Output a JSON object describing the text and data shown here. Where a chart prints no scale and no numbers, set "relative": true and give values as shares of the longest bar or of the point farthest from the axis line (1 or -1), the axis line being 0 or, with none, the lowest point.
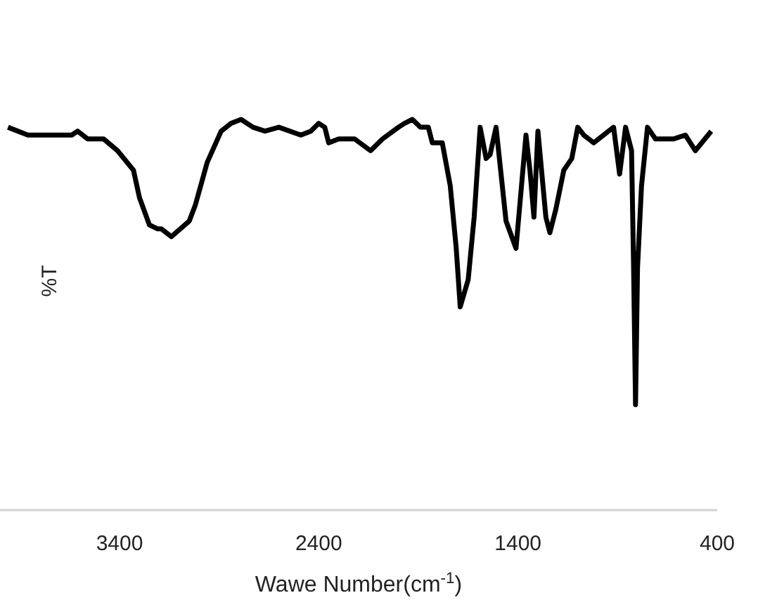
{
  "chart_data": {
    "type": "line",
    "xlabel": "Wawe Number(cm$^{-1}$)",
    "ylabel": "%T",
    "relative": true,
    "marker": "none",
    "xlim": [
      4000,
      400
    ],
    "xticks": [
      3400,
      2400,
      1400,
      400
    ],
    "x": [
      3960,
      3860,
      3810,
      3750,
      3700,
      3640,
      3610,
      3560,
      3480,
      3410,
      3330,
      3300,
      3250,
      3210,
      3190,
      3140,
      3050,
      3020,
      2960,
      2890,
      2840,
      2790,
      2730,
      2670,
      2600,
      2490,
      2440,
      2400,
      2370,
      2350,
      2300,
      2220,
      2140,
      2080,
      2000,
      1970,
      1930,
      1890,
      1850,
      1830,
      1780,
      1740,
      1710,
      1690,
      1650,
      1620,
      1590,
      1560,
      1540,
      1510,
      1460,
      1410,
      1360,
      1340,
      1320,
      1300,
      1260,
      1240,
      1210,
      1170,
      1130,
      1100,
      1070,
      1020,
      920,
      890,
      860,
      830,
      820,
      810,
      800,
      780,
      750,
      710,
      670,
      640,
      620,
      560,
      510,
      430
    ],
    "series": [
      {
        "color": "#000000",
        "values": [
          0.98,
          0.96,
          0.96,
          0.96,
          0.96,
          0.96,
          0.97,
          0.95,
          0.95,
          0.92,
          0.87,
          0.8,
          0.73,
          0.72,
          0.72,
          0.7,
          0.74,
          0.78,
          0.89,
          0.97,
          0.99,
          1.0,
          0.98,
          0.97,
          0.98,
          0.96,
          0.97,
          0.99,
          0.98,
          0.94,
          0.95,
          0.95,
          0.92,
          0.95,
          0.98,
          0.99,
          1.0,
          0.98,
          0.98,
          0.94,
          0.94,
          0.83,
          0.67,
          0.52,
          0.59,
          0.75,
          0.98,
          0.9,
          0.91,
          0.98,
          0.74,
          0.67,
          0.96,
          0.87,
          0.75,
          0.97,
          0.75,
          0.71,
          0.77,
          0.87,
          0.9,
          0.98,
          0.96,
          0.94,
          0.98,
          0.86,
          0.98,
          0.92,
          0.63,
          0.27,
          0.62,
          0.83,
          0.98,
          0.95,
          0.95,
          0.95,
          0.95,
          0.96,
          0.92,
          0.97
        ]
      }
    ]
  }
}
